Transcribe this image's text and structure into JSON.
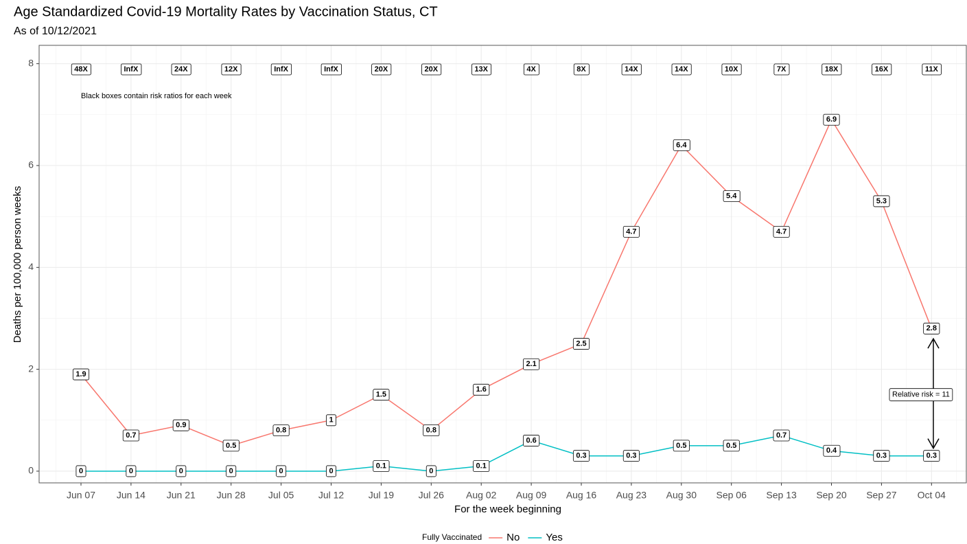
{
  "chart_data": {
    "type": "line",
    "title": "Age Standardized Covid-19 Mortality Rates by Vaccination Status, CT",
    "subtitle": "As of 10/12/2021",
    "x_label": "For the week beginning",
    "y_label": "Deaths per 100,000 person weeks",
    "categories": [
      "Jun 07",
      "Jun 14",
      "Jun 21",
      "Jun 28",
      "Jul 05",
      "Jul 12",
      "Jul 19",
      "Jul 26",
      "Aug 02",
      "Aug 09",
      "Aug 16",
      "Aug 23",
      "Aug 30",
      "Sep 06",
      "Sep 13",
      "Sep 20",
      "Sep 27",
      "Oct 04"
    ],
    "series": [
      {
        "name": "No",
        "color": "#F8766D",
        "values": [
          1.9,
          0.7,
          0.9,
          0.5,
          0.8,
          1,
          1.5,
          0.8,
          1.6,
          2.1,
          2.5,
          4.7,
          6.4,
          5.4,
          4.7,
          6.9,
          5.3,
          2.8
        ]
      },
      {
        "name": "Yes",
        "color": "#00BFC4",
        "values": [
          0,
          0,
          0,
          0,
          0,
          0,
          0.1,
          0,
          0.1,
          0.6,
          0.3,
          0.3,
          0.5,
          0.5,
          0.7,
          0.4,
          0.3,
          0.3
        ]
      }
    ],
    "risk_ratios": [
      "48X",
      "InfX",
      "24X",
      "12X",
      "InfX",
      "InfX",
      "20X",
      "20X",
      "13X",
      "4X",
      "8X",
      "14X",
      "14X",
      "10X",
      "7X",
      "18X",
      "16X",
      "11X"
    ],
    "annotation": "Black boxes contain risk ratios for each week",
    "relative_risk_label": "Relative risk = 11",
    "legend_title": "Fully Vaccinated",
    "ylim": [
      -0.23,
      8.36
    ],
    "yticks": [
      0,
      2,
      4,
      6,
      8
    ],
    "grid": true
  }
}
